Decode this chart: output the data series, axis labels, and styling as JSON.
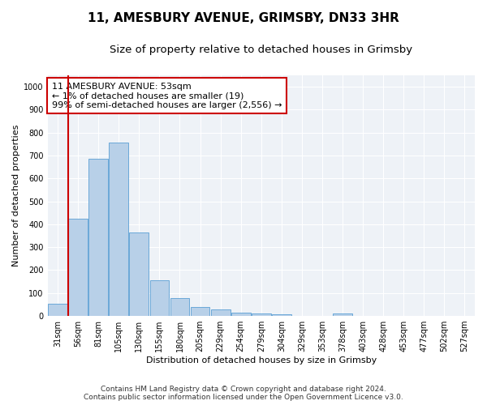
{
  "title_line1": "11, AMESBURY AVENUE, GRIMSBY, DN33 3HR",
  "title_line2": "Size of property relative to detached houses in Grimsby",
  "xlabel": "Distribution of detached houses by size in Grimsby",
  "ylabel": "Number of detached properties",
  "categories": [
    "31sqm",
    "56sqm",
    "81sqm",
    "105sqm",
    "130sqm",
    "155sqm",
    "180sqm",
    "205sqm",
    "229sqm",
    "254sqm",
    "279sqm",
    "304sqm",
    "329sqm",
    "353sqm",
    "378sqm",
    "403sqm",
    "428sqm",
    "453sqm",
    "477sqm",
    "502sqm",
    "527sqm"
  ],
  "values": [
    53,
    425,
    685,
    757,
    363,
    155,
    77,
    40,
    28,
    15,
    11,
    7,
    0,
    0,
    12,
    0,
    0,
    0,
    0,
    0,
    0
  ],
  "bar_color": "#b8d0e8",
  "bar_edge_color": "#5a9fd4",
  "property_line_color": "#cc0000",
  "annotation_line1": "11 AMESBURY AVENUE: 53sqm",
  "annotation_line2": "← 1% of detached houses are smaller (19)",
  "annotation_line3": "99% of semi-detached houses are larger (2,556) →",
  "annotation_box_color": "#ffffff",
  "annotation_box_edge_color": "#cc0000",
  "ylim": [
    0,
    1050
  ],
  "yticks": [
    0,
    100,
    200,
    300,
    400,
    500,
    600,
    700,
    800,
    900,
    1000
  ],
  "background_color": "#eef2f7",
  "footer_line1": "Contains HM Land Registry data © Crown copyright and database right 2024.",
  "footer_line2": "Contains public sector information licensed under the Open Government Licence v3.0.",
  "title_fontsize": 11,
  "subtitle_fontsize": 9.5,
  "annotation_fontsize": 8,
  "axis_label_fontsize": 8,
  "tick_fontsize": 7,
  "footer_fontsize": 6.5
}
